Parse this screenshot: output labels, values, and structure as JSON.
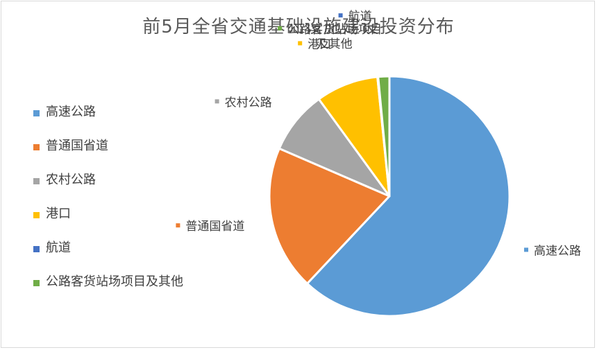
{
  "chart_data": {
    "type": "pie",
    "title": "前5月全省交通基础设施建设投资分布",
    "categories": [
      "高速公路",
      "普通国省道",
      "农村公路",
      "港口",
      "航道",
      "公路客货站场项目及其他"
    ],
    "values": [
      62.0,
      19.5,
      8.5,
      8.4,
      0.1,
      1.5
    ],
    "unit": "percent (estimated share)",
    "colors": [
      "#5b9bd5",
      "#ed7d31",
      "#a5a5a5",
      "#ffc000",
      "#4472c4",
      "#70ad47"
    ],
    "legend_position": "left",
    "legend": [
      "高速公路",
      "普通国省道",
      "农村公路",
      "港口",
      "航道",
      "公路客货站场项目及其他"
    ],
    "data_labels": [
      {
        "lines": [
          "高速公路"
        ]
      },
      {
        "lines": [
          "普通国省道"
        ]
      },
      {
        "lines": [
          "农村公路"
        ]
      },
      {
        "lines": [
          "港口"
        ]
      },
      {
        "lines": [
          "航道"
        ]
      },
      {
        "lines": [
          "公路客货站场项目",
          "及其他"
        ]
      }
    ]
  }
}
